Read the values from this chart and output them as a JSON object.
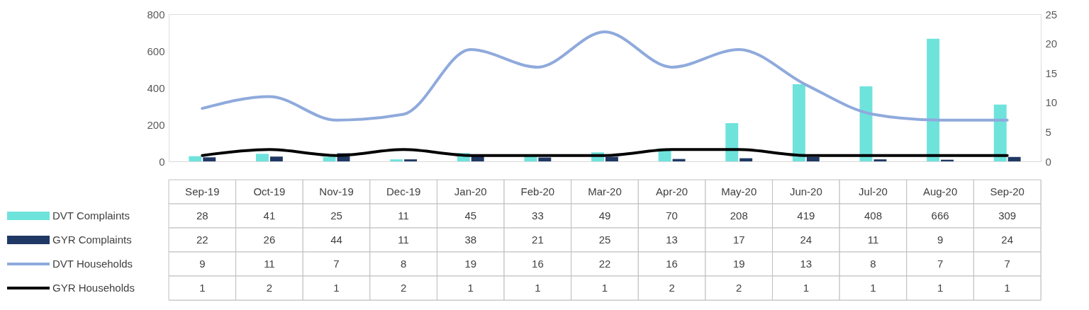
{
  "chart_data": {
    "type": "bar",
    "categories": [
      "Sep-19",
      "Oct-19",
      "Nov-19",
      "Dec-19",
      "Jan-20",
      "Feb-20",
      "Mar-20",
      "Apr-20",
      "May-20",
      "Jun-20",
      "Jul-20",
      "Aug-20",
      "Sep-20"
    ],
    "series": [
      {
        "name": "DVT Complaints",
        "color": "#6ee3dc",
        "values": [
          28,
          41,
          25,
          11,
          45,
          33,
          49,
          70,
          208,
          419,
          408,
          666,
          309
        ]
      },
      {
        "name": "GYR Complaints",
        "color": "#203864",
        "values": [
          22,
          26,
          44,
          11,
          38,
          21,
          25,
          13,
          17,
          24,
          11,
          9,
          24
        ]
      },
      {
        "name": "DVT Households",
        "type": "line",
        "axis": "y2",
        "color": "#8faadc",
        "values": [
          9,
          11,
          7,
          8,
          19,
          16,
          22,
          16,
          19,
          13,
          8,
          7,
          7
        ]
      },
      {
        "name": "GYR Households",
        "type": "line",
        "axis": "y2",
        "color": "#000000",
        "values": [
          1,
          2,
          1,
          2,
          1,
          1,
          1,
          2,
          2,
          1,
          1,
          1,
          1
        ]
      }
    ],
    "ylim": [
      0,
      800
    ],
    "yticks": [
      0,
      200,
      400,
      600,
      800
    ],
    "y2lim": [
      0,
      25
    ],
    "y2ticks": [
      0,
      5,
      10,
      15,
      20,
      25
    ],
    "grid": false,
    "legend": "bottom",
    "data_labels": true,
    "marker": "none",
    "line_style": "solid"
  }
}
